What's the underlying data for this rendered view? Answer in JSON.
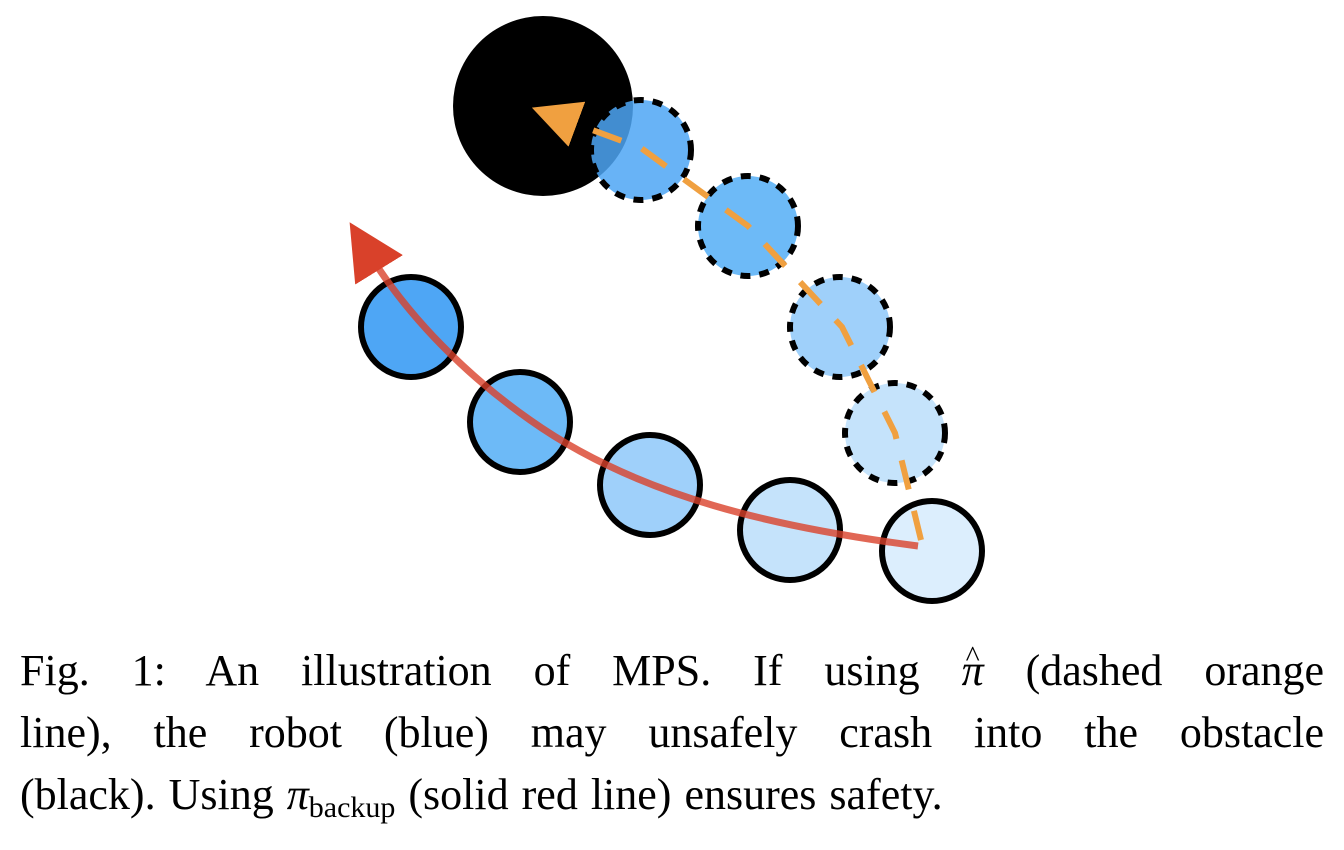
{
  "caption": {
    "fig_label": "Fig. 1:",
    "line1_a": "An illustration of MPS. If using",
    "pi_hat": "π",
    "line1_b": "(dashed orange",
    "line2": "line), the robot (blue) may unsafely crash into the obstacle",
    "line3_a": "(black). Using",
    "pi_backup": "π",
    "backup_sub": "backup",
    "line3_b": "(solid red line) ensures safety."
  },
  "colors": {
    "obstacle": "#000000",
    "backup_path": "#d9412a",
    "policy_path": "#f0a040",
    "robot_shades": [
      "#4ea6f5",
      "#6dbaf7",
      "#9fd0fa",
      "#c5e3fb",
      "#dceefd"
    ]
  }
}
